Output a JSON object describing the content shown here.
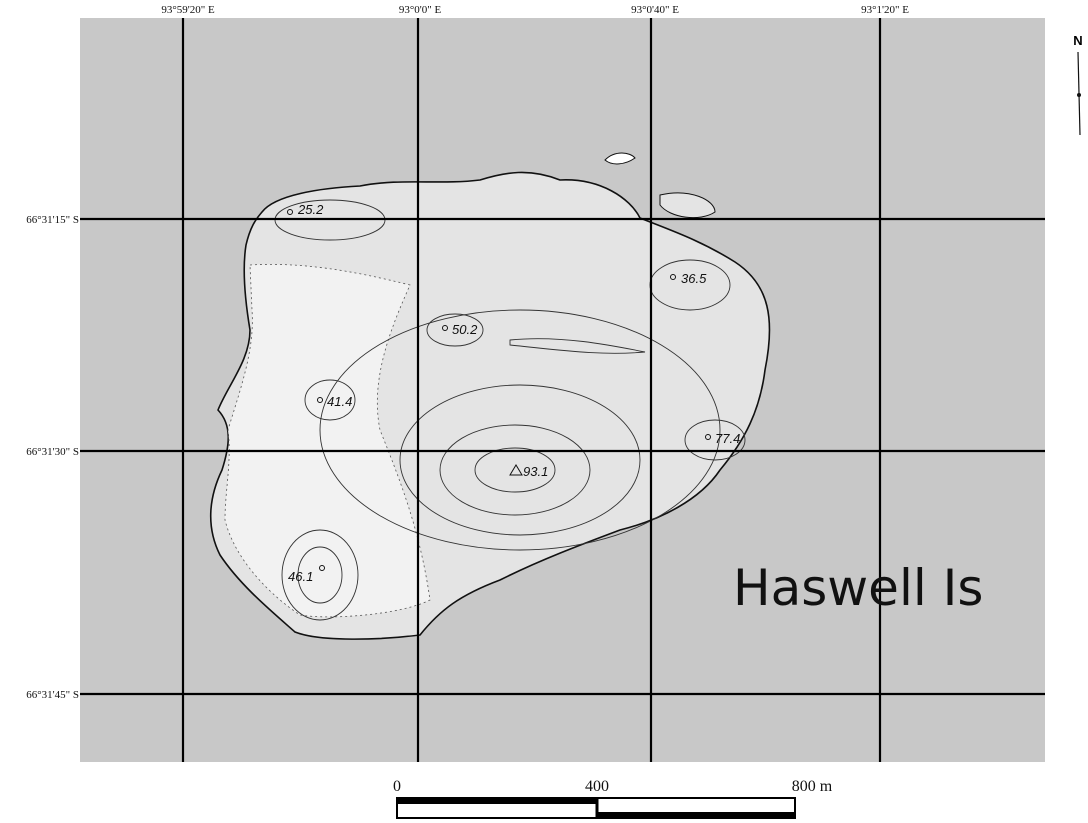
{
  "map": {
    "title": "Haswell Is",
    "north": "N",
    "longitudes": [
      "93°59'20\" E",
      "93°0'0\" E",
      "93°0'40\" E",
      "93°1'20\" E"
    ],
    "latitudes": [
      "66°31'15\" S",
      "66°31'30\" S",
      "66°31'45\" S"
    ],
    "elevations": [
      "25.2",
      "36.5",
      "50.2",
      "41.4",
      "77.4",
      "93.1",
      "46.1"
    ],
    "scale": [
      "0",
      "400",
      "800 m"
    ]
  }
}
